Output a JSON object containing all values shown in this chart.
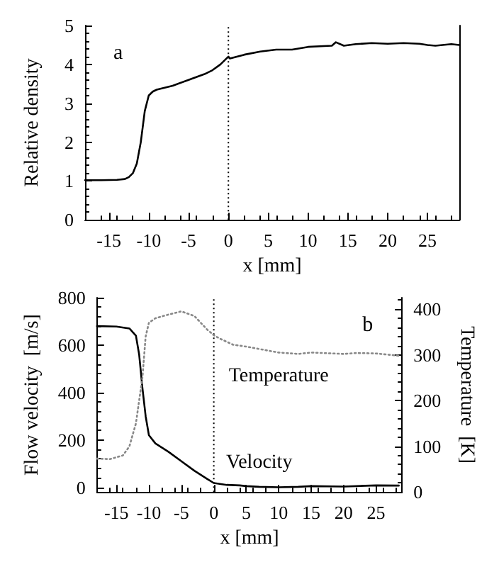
{
  "chart_data": [
    {
      "type": "line",
      "xlabel": "x [mm]",
      "ylabel": "Relative density",
      "annotations": [
        "a"
      ],
      "xlim": [
        -18,
        29
      ],
      "xticks": [
        -15,
        -10,
        -5,
        0,
        5,
        10,
        15,
        20,
        25
      ],
      "ylim": [
        0,
        5
      ],
      "yticks": [
        0,
        1,
        2,
        3,
        4,
        5
      ],
      "grid": false,
      "marker": "none",
      "ref_lines": [
        {
          "axis": "x",
          "value": 0,
          "line_style": "dotted",
          "color": "#000000"
        }
      ],
      "series": [
        {
          "color": "#000000",
          "line_style": "solid",
          "x": [
            -18,
            -16,
            -14,
            -13,
            -12.5,
            -12,
            -11.5,
            -11,
            -10.5,
            -10,
            -9.5,
            -9,
            -8,
            -7,
            -5,
            -3,
            -2,
            -1,
            0,
            0.2,
            2,
            4,
            6,
            8,
            10,
            12,
            13,
            13.5,
            14.5,
            16,
            18,
            20,
            22,
            24,
            25,
            26,
            28,
            29
          ],
          "values": [
            1.02,
            1.02,
            1.03,
            1.05,
            1.1,
            1.2,
            1.45,
            2.0,
            2.8,
            3.2,
            3.3,
            3.35,
            3.4,
            3.45,
            3.6,
            3.75,
            3.85,
            4.0,
            4.2,
            4.15,
            4.25,
            4.33,
            4.38,
            4.38,
            4.45,
            4.47,
            4.48,
            4.57,
            4.48,
            4.52,
            4.55,
            4.53,
            4.55,
            4.53,
            4.5,
            4.48,
            4.52,
            4.5
          ]
        }
      ]
    },
    {
      "type": "line",
      "xlabel": "x [mm]",
      "ylabel": "Flow velocity  [m/s]",
      "y2label": "Temperature  [K]",
      "annotations": [
        "b"
      ],
      "xlim": [
        -18,
        29
      ],
      "xticks": [
        -15,
        -10,
        -5,
        0,
        5,
        10,
        15,
        20,
        25
      ],
      "ylim": [
        -20,
        800
      ],
      "yticks": [
        0,
        200,
        400,
        600,
        800
      ],
      "y2lim": [
        0,
        425
      ],
      "y2ticks": [
        0,
        100,
        200,
        300,
        400
      ],
      "grid": false,
      "marker": "none",
      "ref_lines": [
        {
          "axis": "x",
          "value": 0,
          "line_style": "dotted",
          "color": "#000000"
        }
      ],
      "series": [
        {
          "name": "Velocity",
          "color": "#000000",
          "line_style": "solid",
          "x": [
            -18,
            -15,
            -13,
            -12,
            -11.5,
            -11,
            -10.5,
            -10,
            -9,
            -7,
            -5,
            -3,
            -1,
            0,
            2,
            4,
            5,
            7,
            10,
            13,
            15,
            20,
            25,
            28.5
          ],
          "values": [
            680,
            678,
            670,
            640,
            560,
            420,
            300,
            220,
            185,
            150,
            110,
            70,
            35,
            18,
            10,
            8,
            5,
            2,
            0,
            2,
            5,
            3,
            8,
            7
          ]
        },
        {
          "name": "Temperature",
          "color": "#888888",
          "line_style": "dotted",
          "axis": "y2",
          "x": [
            -18,
            -16,
            -14,
            -13,
            -12,
            -11,
            -10.5,
            -10,
            -9,
            -7,
            -5,
            -3,
            -1,
            0,
            1,
            3,
            5,
            10,
            13,
            15,
            20,
            22,
            25,
            28.5
          ],
          "values": [
            73,
            72,
            80,
            100,
            150,
            250,
            340,
            370,
            380,
            388,
            395,
            385,
            355,
            343,
            335,
            322,
            318,
            305,
            302,
            305,
            302,
            304,
            303,
            298
          ]
        }
      ]
    }
  ]
}
